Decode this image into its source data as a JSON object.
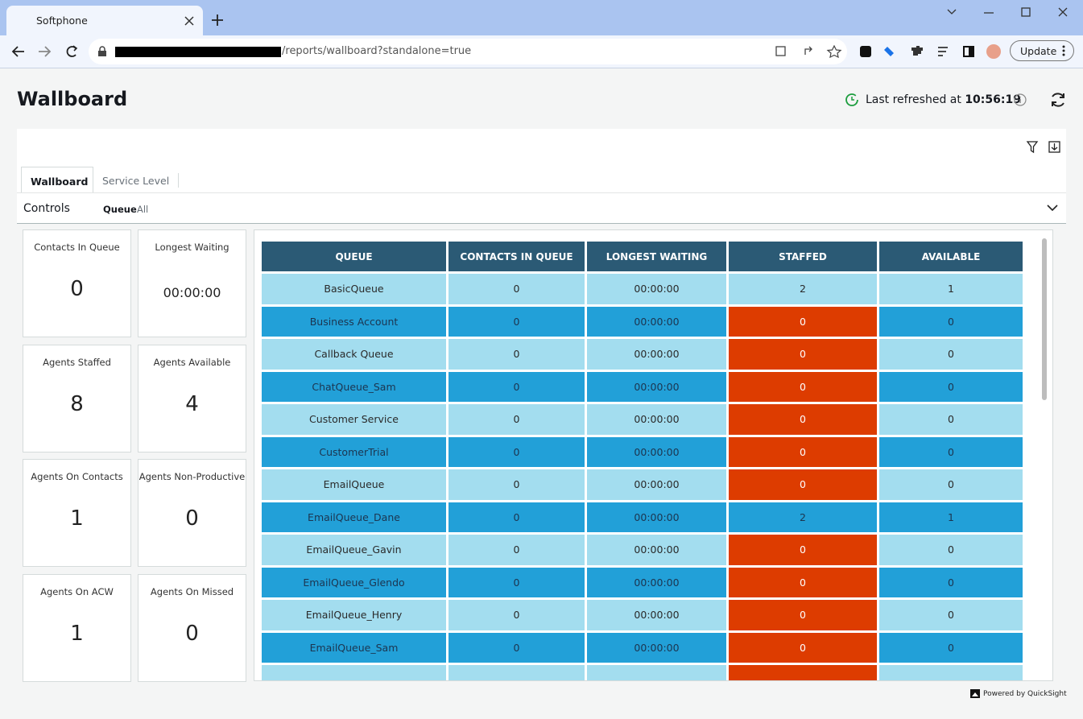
{
  "browser": {
    "tab_title": "Softphone",
    "url": "/reports/wallboard?standalone=true",
    "update_button": "Update"
  },
  "header": {
    "title": "Wallboard",
    "refresh_label": "Last refreshed at",
    "refresh_time": "10:56:19"
  },
  "tabs": [
    "Wallboard",
    "Service Level"
  ],
  "controls": {
    "label": "Controls",
    "filter_name": "Queue",
    "filter_value": "All"
  },
  "kpis": [
    {
      "label": "Contacts In Queue",
      "value": 0
    },
    {
      "label": "Longest Waiting",
      "value": "00:00:00"
    },
    {
      "label": "Agents Staffed",
      "value": 8
    },
    {
      "label": "Agents Available",
      "value": 4
    },
    {
      "label": "Agents On Contacts",
      "value": 1
    },
    {
      "label": "Agents Non-Productive",
      "value": 0
    },
    {
      "label": "Agents On ACW",
      "value": 1
    },
    {
      "label": "Agents On Missed",
      "value": 0
    }
  ],
  "table": {
    "columns": [
      "QUEUE",
      "CONTACTS IN QUEUE",
      "LONGEST WAITING",
      "STAFFED",
      "AVAILABLE"
    ],
    "rows": [
      [
        "BasicQueue",
        0,
        "00:00:00",
        2,
        1
      ],
      [
        "Business Account",
        0,
        "00:00:00",
        0,
        0
      ],
      [
        "Callback Queue",
        0,
        "00:00:00",
        0,
        0
      ],
      [
        "ChatQueue_Sam",
        0,
        "00:00:00",
        0,
        0
      ],
      [
        "Customer Service",
        0,
        "00:00:00",
        0,
        0
      ],
      [
        "CustomerTrial",
        0,
        "00:00:00",
        0,
        0
      ],
      [
        "EmailQueue",
        0,
        "00:00:00",
        0,
        0
      ],
      [
        "EmailQueue_Dane",
        0,
        "00:00:00",
        2,
        1
      ],
      [
        "EmailQueue_Gavin",
        0,
        "00:00:00",
        0,
        0
      ],
      [
        "EmailQueue_Glendo",
        0,
        "00:00:00",
        0,
        0
      ],
      [
        "EmailQueue_Henry",
        0,
        "00:00:00",
        0,
        0
      ],
      [
        "EmailQueue_Sam",
        0,
        "00:00:00",
        0,
        0
      ]
    ]
  },
  "footer": "Powered by QuickSight"
}
